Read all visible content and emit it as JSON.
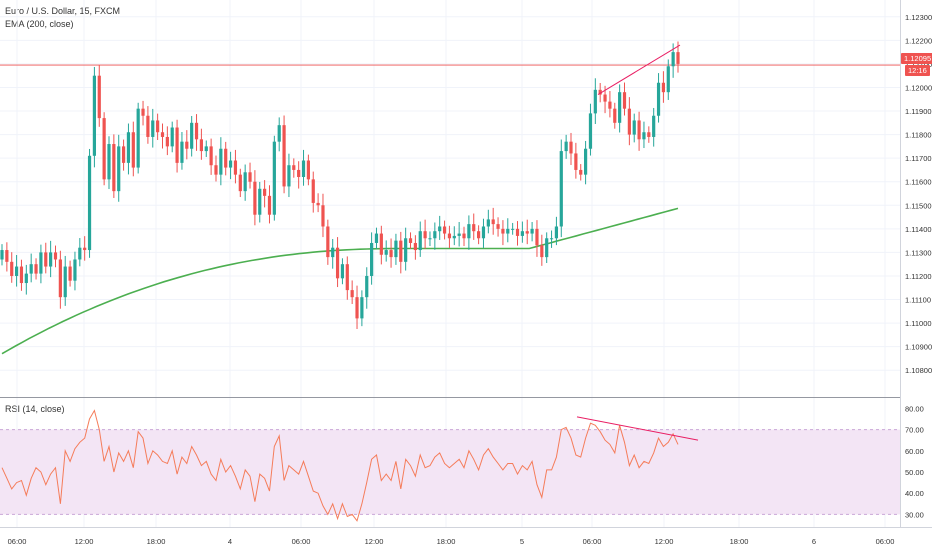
{
  "colors": {
    "up": "#26a69a",
    "down": "#ef5350",
    "ema": "#4caf50",
    "rsi_line": "#f57c5a",
    "rsi_band": "#f3e5f5",
    "trend_line": "#e91e63",
    "price_line": "#ef5350",
    "grid": "#f0f3fa"
  },
  "legend": {
    "symbol": "Euro / U.S. Dollar, 15, FXCM",
    "ema": "EMA (200, close)",
    "rsi": "RSI (14, close)"
  },
  "price_badge": {
    "price": "1.12095",
    "countdown": "12:16"
  },
  "chart_data": [
    {
      "type": "candlestick",
      "y_ticks": [
        "1.12300",
        "1.12200",
        "1.12100",
        "1.12000",
        "1.11900",
        "1.11800",
        "1.11700",
        "1.11600",
        "1.11500",
        "1.11400",
        "1.11300",
        "1.11200",
        "1.11100",
        "1.11000",
        "1.10900",
        "1.10800"
      ],
      "ylim": [
        1.1075,
        1.1235
      ],
      "x_ticks": [
        "06:00",
        "12:00",
        "18:00",
        "4",
        "06:00",
        "12:00",
        "18:00",
        "5",
        "06:00",
        "12:00",
        "18:00",
        "6",
        "06:00"
      ],
      "current_price": 1.12095,
      "closes": [
        1.1131,
        1.1126,
        1.112,
        1.1124,
        1.1117,
        1.1121,
        1.1125,
        1.1121,
        1.113,
        1.1124,
        1.113,
        1.1127,
        1.1111,
        1.1124,
        1.1118,
        1.1127,
        1.1132,
        1.1131,
        1.1171,
        1.1205,
        1.1187,
        1.1161,
        1.1176,
        1.1156,
        1.1175,
        1.1168,
        1.1181,
        1.1166,
        1.1191,
        1.1188,
        1.1179,
        1.1186,
        1.1181,
        1.1179,
        1.1175,
        1.1183,
        1.1168,
        1.1177,
        1.1174,
        1.1185,
        1.1178,
        1.1173,
        1.1175,
        1.1167,
        1.1163,
        1.1174,
        1.1166,
        1.1169,
        1.1163,
        1.1156,
        1.1164,
        1.116,
        1.1146,
        1.1157,
        1.1154,
        1.1146,
        1.1177,
        1.1184,
        1.1158,
        1.1167,
        1.1165,
        1.1162,
        1.1169,
        1.1161,
        1.1151,
        1.115,
        1.1141,
        1.1128,
        1.1132,
        1.1119,
        1.1125,
        1.1114,
        1.1111,
        1.1102,
        1.1111,
        1.112,
        1.1134,
        1.1138,
        1.1129,
        1.1131,
        1.1128,
        1.1135,
        1.1126,
        1.1136,
        1.1134,
        1.1131,
        1.1139,
        1.1136,
        1.1136,
        1.1139,
        1.1141,
        1.1138,
        1.1136,
        1.1137,
        1.1138,
        1.1136,
        1.1142,
        1.1139,
        1.1136,
        1.1141,
        1.1144,
        1.1142,
        1.114,
        1.1138,
        1.114,
        1.114,
        1.1137,
        1.1139,
        1.1138,
        1.114,
        1.1133,
        1.1128,
        1.1136,
        1.1136,
        1.1141,
        1.1173,
        1.1177,
        1.1172,
        1.1165,
        1.1163,
        1.1174,
        1.1189,
        1.1199,
        1.1197,
        1.1194,
        1.1191,
        1.1185,
        1.1198,
        1.1191,
        1.118,
        1.1186,
        1.1178,
        1.1181,
        1.1179,
        1.1188,
        1.1202,
        1.1198,
        1.1209,
        1.1215,
        1.121
      ],
      "ema_200": {
        "start": 1.1087,
        "end": 1.1149
      },
      "annotations": [
        "trend line over highs (rising)"
      ]
    },
    {
      "type": "line",
      "name": "RSI (14, close)",
      "y_ticks": [
        "80.00",
        "70.00",
        "60.00",
        "50.00",
        "40.00",
        "30.00"
      ],
      "ylim": [
        25,
        83
      ],
      "band": [
        30,
        70
      ],
      "values": [
        52,
        47,
        42,
        45,
        46,
        39,
        47,
        52,
        50,
        44,
        49,
        52,
        35,
        60,
        55,
        61,
        64,
        66,
        75,
        79,
        70,
        55,
        62,
        50,
        59,
        55,
        60,
        52,
        69,
        66,
        54,
        60,
        58,
        55,
        54,
        60,
        49,
        57,
        54,
        62,
        58,
        53,
        55,
        49,
        46,
        56,
        50,
        53,
        48,
        42,
        51,
        48,
        36,
        49,
        47,
        41,
        62,
        67,
        46,
        53,
        51,
        49,
        55,
        48,
        41,
        40,
        34,
        30,
        35,
        28,
        35,
        29,
        30,
        27,
        35,
        45,
        56,
        58,
        46,
        49,
        46,
        55,
        42,
        56,
        53,
        48,
        58,
        52,
        53,
        57,
        59,
        54,
        52,
        54,
        56,
        52,
        60,
        56,
        51,
        58,
        61,
        57,
        54,
        51,
        54,
        54,
        49,
        53,
        51,
        55,
        44,
        38,
        51,
        51,
        57,
        70,
        71,
        66,
        58,
        57,
        66,
        73,
        72,
        69,
        65,
        63,
        59,
        72,
        64,
        53,
        58,
        52,
        55,
        54,
        59,
        66,
        62,
        64,
        68,
        63
      ],
      "annotations": [
        "trend line over RSI peaks (falling)"
      ]
    }
  ]
}
